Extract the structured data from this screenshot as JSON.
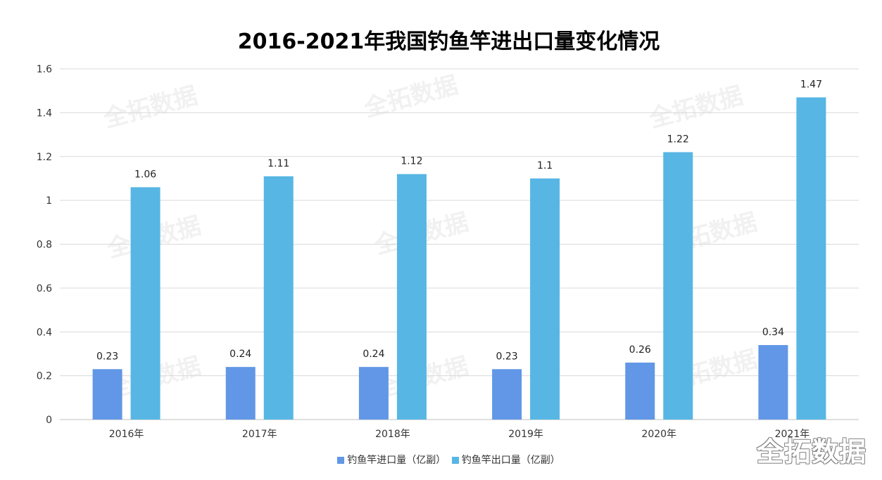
{
  "watermark": "全拓数据",
  "chart_data": {
    "type": "bar",
    "title": "2016-2021年我国钓鱼竿进出口量变化情况",
    "categories": [
      "2016年",
      "2017年",
      "2018年",
      "2019年",
      "2020年",
      "2021年"
    ],
    "series": [
      {
        "name": "钓鱼竿进口量（亿副）",
        "values": [
          0.23,
          0.24,
          0.24,
          0.23,
          0.26,
          0.34
        ],
        "color": "#6197E6"
      },
      {
        "name": "钓鱼竿出口量（亿副）",
        "values": [
          1.06,
          1.11,
          1.12,
          1.1,
          1.22,
          1.47
        ],
        "color": "#57B6E4"
      }
    ],
    "ylim": [
      0,
      1.6
    ],
    "yticks": [
      "0",
      "0.2",
      "0.4",
      "0.6",
      "0.8",
      "1",
      "1.2",
      "1.4",
      "1.6"
    ],
    "grid": true,
    "legend": "bottom"
  }
}
